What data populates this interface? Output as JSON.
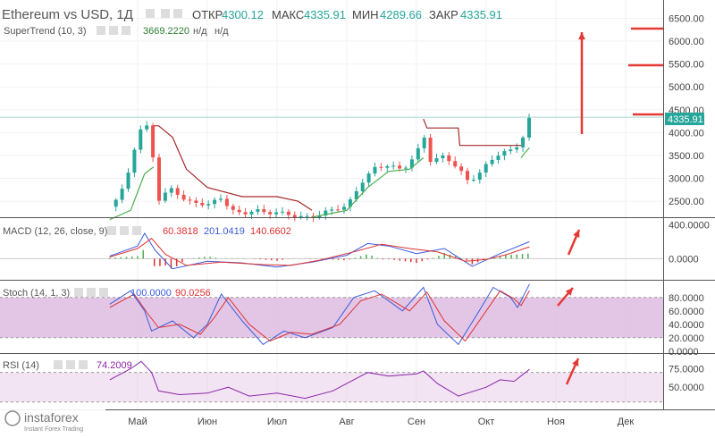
{
  "header": {
    "title": "Ethereum vs USD, 1Д",
    "open_label": "ОТКР",
    "open": "4300.12",
    "high_label": "МАКС",
    "high": "4335.91",
    "low_label": "МИН",
    "low": "4289.66",
    "close_label": "ЗАКР",
    "close": "4335.91"
  },
  "supertrend": {
    "label": "SuperTrend (10, 3)",
    "value": "3669.2220",
    "na1": "н/д",
    "na2": "н/д"
  },
  "macd": {
    "label": "MACD (12, 26, close, 9)",
    "v1": "60.3818",
    "v2": "201.0419",
    "v3": "140.6602"
  },
  "stoch": {
    "label": "Stoch (14, 1, 3)",
    "v1": "100.0000",
    "v2": "90.0256"
  },
  "rsi": {
    "label": "RSI (14)",
    "value": "74.2009"
  },
  "price_tag": "4335.91",
  "logo": {
    "name": "instaforex",
    "tagline": "Instant Forex Trading"
  },
  "colors": {
    "up": "#26a69a",
    "down": "#ef5350",
    "text": "#555555",
    "supertrend_up": "#4caf50",
    "supertrend_down": "#a52a2a",
    "macd_fast": "#3b5bdb",
    "macd_slow": "#e03131",
    "arrow": "#e53935",
    "band": "#d9b3dd"
  },
  "chart_data": [
    {
      "type": "candlestick",
      "title": "Ethereum vs USD, 1Д",
      "x_ticks": [
        "Май",
        "Июн",
        "Июл",
        "Авг",
        "Сен",
        "Окт",
        "Ноя",
        "Дек"
      ],
      "y_ticks": [
        "2500.00",
        "3000.00",
        "3500.00",
        "4000.00",
        "4500.00",
        "5000.00",
        "5500.00",
        "6000.00",
        "6500.00"
      ],
      "ylim": [
        2150,
        6900
      ],
      "last_close": 4335.91,
      "close_path": [
        [
          -0.4,
          2380
        ],
        [
          -0.25,
          2600
        ],
        [
          -0.1,
          3300
        ],
        [
          0.0,
          4000
        ],
        [
          0.12,
          4200
        ],
        [
          0.2,
          3700
        ],
        [
          0.3,
          2500
        ],
        [
          0.5,
          2800
        ],
        [
          0.7,
          2500
        ],
        [
          1.0,
          2400
        ],
        [
          1.2,
          2600
        ],
        [
          1.35,
          2300
        ],
        [
          1.5,
          2200
        ],
        [
          1.7,
          2300
        ],
        [
          2.0,
          2250
        ],
        [
          2.3,
          2150
        ],
        [
          2.6,
          2200
        ],
        [
          3.0,
          2400
        ],
        [
          3.2,
          2900
        ],
        [
          3.4,
          3200
        ],
        [
          3.6,
          3300
        ],
        [
          3.8,
          3200
        ],
        [
          4.0,
          3500
        ],
        [
          4.1,
          3950
        ],
        [
          4.2,
          3400
        ],
        [
          4.4,
          3500
        ],
        [
          4.6,
          3200
        ],
        [
          4.75,
          2900
        ],
        [
          5.0,
          3300
        ],
        [
          5.2,
          3550
        ],
        [
          5.4,
          3600
        ],
        [
          5.55,
          4000
        ],
        [
          5.62,
          4335.91
        ]
      ],
      "supertrend": [
        {
          "trend": "up",
          "points": [
            [
              -0.4,
              2100
            ],
            [
              -0.1,
              2300
            ],
            [
              0.1,
              3100
            ],
            [
              0.23,
              3250
            ]
          ]
        },
        {
          "trend": "down",
          "points": [
            [
              0.23,
              4150
            ],
            [
              0.3,
              4150
            ],
            [
              0.5,
              3900
            ],
            [
              0.7,
              3200
            ],
            [
              1.0,
              2800
            ],
            [
              1.5,
              2600
            ],
            [
              2.0,
              2600
            ],
            [
              2.3,
              2500
            ],
            [
              2.5,
              2300
            ]
          ]
        },
        {
          "trend": "up",
          "points": [
            [
              2.5,
              2150
            ],
            [
              3.0,
              2300
            ],
            [
              3.3,
              2800
            ],
            [
              3.6,
              3150
            ],
            [
              3.9,
              3200
            ],
            [
              4.1,
              3450
            ]
          ]
        },
        {
          "trend": "down",
          "points": [
            [
              4.1,
              4300
            ],
            [
              4.15,
              4100
            ],
            [
              4.6,
              4100
            ],
            [
              4.62,
              3720
            ],
            [
              5.3,
              3720
            ],
            [
              5.5,
              3720
            ]
          ]
        },
        {
          "trend": "up",
          "points": [
            [
              5.5,
              3450
            ],
            [
              5.55,
              3550
            ],
            [
              5.62,
              3669.222
            ]
          ]
        }
      ]
    },
    {
      "type": "line",
      "title": "MACD (12, 26, close, 9)",
      "y_ticks": [
        "400.0000",
        "0.0000"
      ],
      "ylim": [
        -250,
        480
      ],
      "series": [
        {
          "values_path": [
            [
              -0.4,
              30
            ],
            [
              0.0,
              150
            ],
            [
              0.1,
              300
            ],
            [
              0.25,
              100
            ],
            [
              0.5,
              -120
            ],
            [
              1.0,
              -30
            ],
            [
              1.5,
              -50
            ],
            [
              2.0,
              -100
            ],
            [
              2.5,
              -40
            ],
            [
              3.0,
              40
            ],
            [
              3.3,
              180
            ],
            [
              3.6,
              150
            ],
            [
              4.0,
              60
            ],
            [
              4.4,
              120
            ],
            [
              4.8,
              -90
            ],
            [
              5.2,
              60
            ],
            [
              5.62,
              201
            ]
          ]
        },
        {
          "values_path": [
            [
              -0.4,
              20
            ],
            [
              0.0,
              120
            ],
            [
              0.2,
              240
            ],
            [
              0.4,
              50
            ],
            [
              0.7,
              -80
            ],
            [
              1.2,
              -40
            ],
            [
              1.8,
              -70
            ],
            [
              2.2,
              -80
            ],
            [
              2.6,
              -20
            ],
            [
              3.1,
              80
            ],
            [
              3.5,
              170
            ],
            [
              3.9,
              120
            ],
            [
              4.3,
              80
            ],
            [
              4.7,
              -30
            ],
            [
              5.0,
              -10
            ],
            [
              5.3,
              50
            ],
            [
              5.62,
              140
            ]
          ]
        }
      ]
    },
    {
      "type": "line",
      "title": "Stoch (14, 1, 3)",
      "y_ticks": [
        "80.0000",
        "60.0000",
        "40.0000",
        "20.0000",
        "0.0000"
      ],
      "ylim": [
        -3,
        105
      ],
      "band": [
        20,
        80
      ],
      "series": [
        {
          "values_path": [
            [
              -0.4,
              70
            ],
            [
              -0.1,
              90
            ],
            [
              0.1,
              60
            ],
            [
              0.2,
              30
            ],
            [
              0.5,
              45
            ],
            [
              0.8,
              20
            ],
            [
              1.0,
              40
            ],
            [
              1.2,
              85
            ],
            [
              1.5,
              45
            ],
            [
              1.8,
              10
            ],
            [
              2.1,
              30
            ],
            [
              2.4,
              20
            ],
            [
              2.8,
              35
            ],
            [
              3.1,
              80
            ],
            [
              3.4,
              90
            ],
            [
              3.8,
              60
            ],
            [
              4.1,
              95
            ],
            [
              4.3,
              40
            ],
            [
              4.6,
              10
            ],
            [
              4.9,
              60
            ],
            [
              5.1,
              95
            ],
            [
              5.35,
              80
            ],
            [
              5.45,
              65
            ],
            [
              5.62,
              100
            ]
          ]
        },
        {
          "values_path": [
            [
              -0.4,
              65
            ],
            [
              -0.05,
              85
            ],
            [
              0.15,
              55
            ],
            [
              0.3,
              35
            ],
            [
              0.6,
              40
            ],
            [
              0.9,
              25
            ],
            [
              1.1,
              50
            ],
            [
              1.3,
              80
            ],
            [
              1.6,
              40
            ],
            [
              1.9,
              15
            ],
            [
              2.2,
              28
            ],
            [
              2.5,
              25
            ],
            [
              2.9,
              40
            ],
            [
              3.2,
              75
            ],
            [
              3.5,
              85
            ],
            [
              3.9,
              60
            ],
            [
              4.15,
              88
            ],
            [
              4.4,
              45
            ],
            [
              4.7,
              15
            ],
            [
              5.0,
              60
            ],
            [
              5.2,
              90
            ],
            [
              5.4,
              78
            ],
            [
              5.5,
              68
            ],
            [
              5.62,
              90.0256
            ]
          ]
        }
      ]
    },
    {
      "type": "line",
      "title": "RSI (14)",
      "y_ticks": [
        "75.0000",
        "50.0000"
      ],
      "ylim": [
        20,
        95
      ],
      "band": [
        30,
        70
      ],
      "series": [
        {
          "values_path": [
            [
              -0.4,
              60
            ],
            [
              -0.1,
              75
            ],
            [
              0.05,
              85
            ],
            [
              0.2,
              70
            ],
            [
              0.3,
              45
            ],
            [
              0.6,
              40
            ],
            [
              1.0,
              42
            ],
            [
              1.3,
              50
            ],
            [
              1.6,
              38
            ],
            [
              2.0,
              42
            ],
            [
              2.4,
              35
            ],
            [
              2.8,
              45
            ],
            [
              3.1,
              60
            ],
            [
              3.3,
              70
            ],
            [
              3.6,
              65
            ],
            [
              4.0,
              68
            ],
            [
              4.1,
              72
            ],
            [
              4.3,
              55
            ],
            [
              4.6,
              38
            ],
            [
              5.0,
              50
            ],
            [
              5.2,
              60
            ],
            [
              5.4,
              58
            ],
            [
              5.62,
              74.2009
            ]
          ]
        }
      ]
    }
  ]
}
